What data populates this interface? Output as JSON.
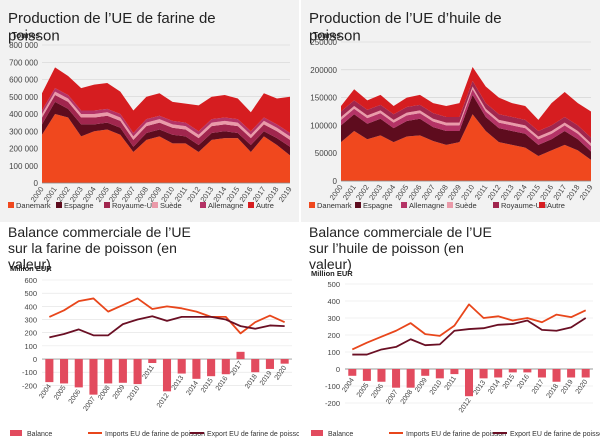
{
  "colors": {
    "danemark": "#f0481e",
    "espagne": "#5e0c1e",
    "royaume_uni": "#a1264e",
    "suede": "#ea9aa9",
    "allemagne": "#b43366",
    "autre": "#d61d20",
    "balance": "#e24b5e",
    "imports": "#e8461b",
    "exports": "#6a0f24"
  },
  "chart_data": [
    {
      "type": "area",
      "stacked": true,
      "title": "Production de l’UE de farine de poisson",
      "ylabel": "Tonnes",
      "ylim": [
        0,
        800000
      ],
      "yticks": [
        0,
        100000,
        200000,
        300000,
        400000,
        500000,
        600000,
        700000,
        800000
      ],
      "ytick_labels": [
        "0",
        "100 000",
        "200 000",
        "300 000",
        "400 000",
        "500 000",
        "600 000",
        "700 000",
        "800 000"
      ],
      "x": [
        "2000",
        "2001",
        "2002",
        "2003",
        "2004",
        "2005",
        "2006",
        "2007",
        "2008",
        "2009",
        "2010",
        "2011",
        "2012",
        "2013",
        "2014",
        "2015",
        "2016",
        "2017",
        "2018",
        "2019"
      ],
      "legend_position": "bottom",
      "series": [
        {
          "name": "Danemark",
          "color_key": "danemark",
          "values": [
            280000,
            400000,
            380000,
            270000,
            300000,
            310000,
            280000,
            180000,
            250000,
            270000,
            230000,
            230000,
            180000,
            250000,
            260000,
            260000,
            180000,
            270000,
            220000,
            160000
          ]
        },
        {
          "name": "Espagne",
          "color_key": "espagne",
          "values": [
            60000,
            70000,
            50000,
            70000,
            40000,
            40000,
            40000,
            30000,
            40000,
            40000,
            50000,
            40000,
            40000,
            40000,
            40000,
            30000,
            40000,
            30000,
            40000,
            50000
          ]
        },
        {
          "name": "Royaume-Uni",
          "color_key": "royaume_uni",
          "values": [
            40000,
            40000,
            40000,
            40000,
            40000,
            40000,
            40000,
            40000,
            40000,
            40000,
            40000,
            40000,
            40000,
            40000,
            40000,
            40000,
            40000,
            40000,
            40000,
            40000
          ]
        },
        {
          "name": "Suède",
          "color_key": "suede",
          "values": [
            20000,
            20000,
            20000,
            20000,
            20000,
            20000,
            20000,
            20000,
            20000,
            20000,
            20000,
            20000,
            20000,
            20000,
            20000,
            20000,
            20000,
            20000,
            20000,
            20000
          ]
        },
        {
          "name": "Allemagne",
          "color_key": "allemagne",
          "values": [
            20000,
            20000,
            20000,
            20000,
            20000,
            20000,
            20000,
            20000,
            20000,
            20000,
            20000,
            20000,
            20000,
            20000,
            20000,
            20000,
            20000,
            20000,
            20000,
            20000
          ]
        },
        {
          "name": "Autre",
          "color_key": "autre",
          "values": [
            100000,
            120000,
            110000,
            130000,
            150000,
            150000,
            130000,
            130000,
            130000,
            130000,
            110000,
            110000,
            150000,
            130000,
            130000,
            120000,
            110000,
            140000,
            150000,
            210000
          ]
        }
      ]
    },
    {
      "type": "area",
      "stacked": true,
      "title": "Production de l’UE d’huile de poisson",
      "ylabel": "Tonnes",
      "ylim": [
        0,
        250000
      ],
      "yticks": [
        0,
        50000,
        100000,
        150000,
        200000,
        250000
      ],
      "ytick_labels": [
        "0",
        "50000",
        "100000",
        "150000",
        "200000",
        "250000"
      ],
      "x": [
        "2000",
        "2001",
        "2002",
        "2003",
        "2004",
        "2005",
        "2006",
        "2007",
        "2008",
        "2009",
        "2010",
        "2011",
        "2012",
        "2013",
        "2014",
        "2015",
        "2016",
        "2017",
        "2018",
        "2019"
      ],
      "legend_position": "bottom",
      "series": [
        {
          "name": "Danemark",
          "color_key": "danemark",
          "values": [
            70000,
            90000,
            75000,
            82000,
            70000,
            80000,
            82000,
            72000,
            65000,
            70000,
            120000,
            90000,
            70000,
            65000,
            60000,
            45000,
            55000,
            65000,
            55000,
            38000
          ]
        },
        {
          "name": "Espagne",
          "color_key": "espagne",
          "values": [
            30000,
            30000,
            28000,
            30000,
            25000,
            28000,
            30000,
            25000,
            25000,
            20000,
            35000,
            25000,
            25000,
            25000,
            25000,
            20000,
            20000,
            25000,
            20000,
            15000
          ]
        },
        {
          "name": "Allemagne",
          "color_key": "allemagne",
          "values": [
            10000,
            10000,
            10000,
            10000,
            10000,
            10000,
            10000,
            10000,
            10000,
            10000,
            10000,
            10000,
            10000,
            10000,
            10000,
            10000,
            10000,
            10000,
            10000,
            10000
          ]
        },
        {
          "name": "Suède",
          "color_key": "suede",
          "values": [
            5000,
            5000,
            5000,
            5000,
            5000,
            5000,
            5000,
            5000,
            5000,
            5000,
            5000,
            5000,
            5000,
            5000,
            5000,
            5000,
            5000,
            5000,
            5000,
            5000
          ]
        },
        {
          "name": "Royaume-Uni",
          "color_key": "royaume_uni",
          "values": [
            10000,
            10000,
            10000,
            10000,
            10000,
            10000,
            10000,
            10000,
            10000,
            10000,
            10000,
            10000,
            10000,
            10000,
            10000,
            10000,
            10000,
            10000,
            10000,
            10000
          ]
        },
        {
          "name": "Autre",
          "color_key": "autre",
          "values": [
            10000,
            20000,
            17000,
            18000,
            15000,
            17000,
            18000,
            18000,
            20000,
            25000,
            25000,
            30000,
            30000,
            25000,
            25000,
            20000,
            40000,
            45000,
            40000,
            47000
          ]
        }
      ]
    },
    {
      "type": "bar+line",
      "title": "Balance commerciale de l’UE sur la farine de poisson (en valeur)",
      "ylabel": "Million EUR",
      "ylim": [
        -250,
        600
      ],
      "yticks": [
        -200,
        -100,
        0,
        100,
        200,
        300,
        400,
        500,
        600
      ],
      "ytick_labels": [
        "-200",
        "-100",
        "0",
        "100",
        "200",
        "300",
        "400",
        "500",
        "600"
      ],
      "x": [
        "2004",
        "2005",
        "2006",
        "2007",
        "2008",
        "2009",
        "2010",
        "2011",
        "2012",
        "2013",
        "2014",
        "2015",
        "2016",
        "2017",
        "2018",
        "2019",
        "2020"
      ],
      "legend_position": "bottom",
      "series": [
        {
          "name": "Balance",
          "kind": "bar",
          "color_key": "balance",
          "values": [
            -175,
            -185,
            -215,
            -270,
            -185,
            -180,
            -190,
            -30,
            -245,
            -110,
            -150,
            -130,
            -115,
            55,
            -100,
            -75,
            -35
          ]
        },
        {
          "name": "Imports EU de farine de poisson",
          "kind": "line",
          "color_key": "imports",
          "values": [
            320,
            370,
            440,
            460,
            360,
            410,
            460,
            380,
            400,
            385,
            360,
            320,
            320,
            195,
            280,
            330,
            280
          ]
        },
        {
          "name": "Export EU de farine de poisson",
          "kind": "line",
          "color_key": "exports",
          "values": [
            165,
            190,
            225,
            180,
            180,
            265,
            300,
            325,
            290,
            320,
            320,
            320,
            300,
            250,
            230,
            255,
            250
          ]
        }
      ]
    },
    {
      "type": "bar+line",
      "title": "Balance commerciale de l’UE sur l’huile de poisson (en valeur)",
      "ylabel": "Million EUR",
      "ylim": [
        -200,
        500
      ],
      "yticks": [
        -200,
        -100,
        0,
        100,
        200,
        300,
        400,
        500
      ],
      "ytick_labels": [
        "-200",
        "-100",
        "0",
        "100",
        "200",
        "300",
        "400",
        "500"
      ],
      "x": [
        "2004",
        "2005",
        "2006",
        "2007",
        "2008",
        "2009",
        "2010",
        "2011",
        "2012",
        "2013",
        "2014",
        "2015",
        "2016",
        "2017",
        "2018",
        "2019",
        "2020"
      ],
      "legend_position": "bottom",
      "series": [
        {
          "name": "Balance",
          "kind": "bar",
          "color_key": "balance",
          "values": [
            -40,
            -70,
            -75,
            -110,
            -110,
            -40,
            -55,
            -30,
            -160,
            -55,
            -50,
            -20,
            -20,
            -50,
            -75,
            -50,
            -50
          ]
        },
        {
          "name": "Imports EU de farine de poisson",
          "kind": "line",
          "color_key": "imports",
          "values": [
            115,
            155,
            190,
            225,
            270,
            205,
            195,
            255,
            380,
            300,
            310,
            285,
            300,
            275,
            320,
            305,
            345
          ]
        },
        {
          "name": "Export EU de farine de poisson",
          "kind": "line",
          "color_key": "exports",
          "values": [
            85,
            85,
            115,
            130,
            175,
            140,
            145,
            225,
            235,
            240,
            260,
            265,
            285,
            230,
            225,
            245,
            300
          ]
        }
      ]
    }
  ]
}
